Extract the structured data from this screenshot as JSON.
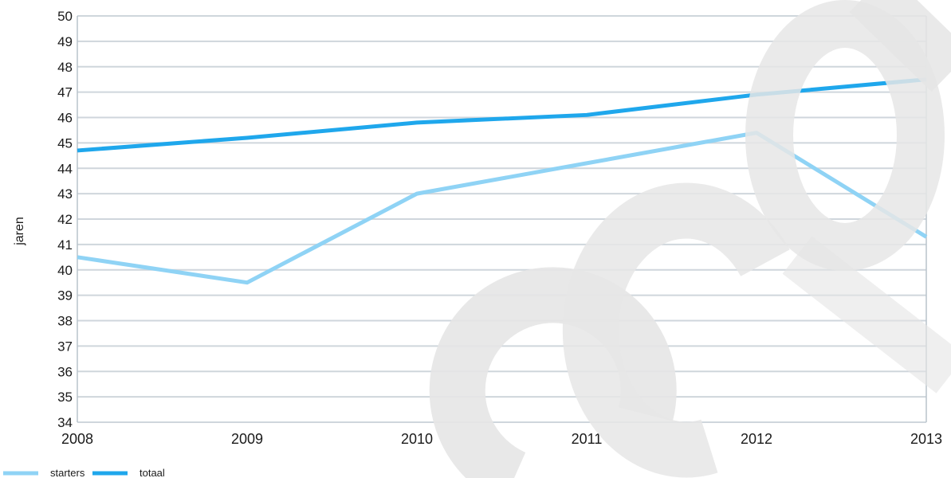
{
  "chart_data": {
    "type": "line",
    "title": "",
    "ylabel": "jaren",
    "xlabel": "",
    "x": [
      "2008",
      "2009",
      "2010",
      "2011",
      "2012",
      "2013"
    ],
    "ylim": [
      34,
      50
    ],
    "y_ticks": [
      34,
      35,
      36,
      37,
      38,
      39,
      40,
      41,
      42,
      43,
      44,
      45,
      46,
      47,
      48,
      49,
      50
    ],
    "grid": "horizontal",
    "legend_position": "bottom-left",
    "series": [
      {
        "name": "starters",
        "color": "#8fd3f5",
        "values": [
          40.5,
          39.5,
          43.0,
          44.2,
          45.4,
          41.3
        ]
      },
      {
        "name": "totaal",
        "color": "#1fa7ec",
        "values": [
          44.7,
          45.2,
          45.8,
          46.1,
          46.9,
          47.5
        ]
      }
    ]
  },
  "watermark": {
    "text": "cep",
    "color": "#e6e6e6"
  }
}
